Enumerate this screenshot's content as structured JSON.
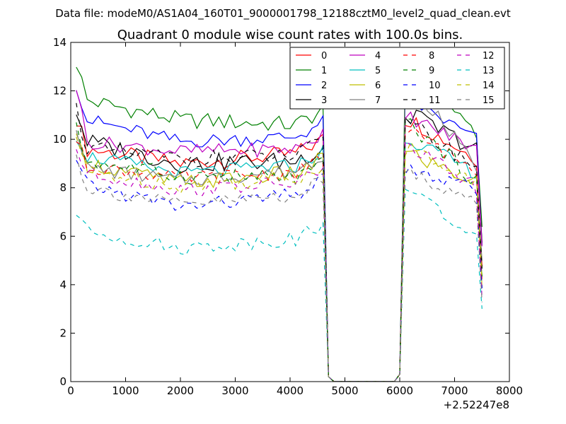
{
  "header": {
    "datafile": "Data file: modeM0/AS1A04_160T01_9000001798_12188cztM0_level2_quad_clean.evt",
    "title": "Quadrant 0 module wise count rates with 100.0s bins."
  },
  "chart_data": {
    "type": "line",
    "title": "Quadrant 0 module wise count rates with 100.0s bins.",
    "xlabel": "",
    "ylabel": "",
    "x_offset_label": "+2.52247e8",
    "xlim": [
      0,
      8000
    ],
    "ylim": [
      0,
      14
    ],
    "xticks": [
      0,
      1000,
      2000,
      3000,
      4000,
      5000,
      6000,
      7000,
      8000
    ],
    "yticks": [
      0,
      2,
      4,
      6,
      8,
      10,
      12,
      14
    ],
    "grid": false,
    "legend_position": "top-right",
    "legend_columns": 4,
    "x": [
      100,
      200,
      300,
      400,
      500,
      600,
      700,
      800,
      900,
      1000,
      1100,
      1200,
      1300,
      1400,
      1500,
      1600,
      1700,
      1800,
      1900,
      2000,
      2100,
      2200,
      2300,
      2400,
      2500,
      2600,
      2700,
      2800,
      2900,
      3000,
      3100,
      3200,
      3300,
      3400,
      3500,
      3600,
      3700,
      3800,
      3900,
      4000,
      4100,
      4200,
      4300,
      4400,
      4500,
      4600,
      4700,
      4800,
      4900,
      5000,
      5100,
      5200,
      5300,
      5400,
      5500,
      5600,
      5700,
      5800,
      5900,
      6000,
      6100,
      6200,
      6300,
      6400,
      6500,
      6600,
      6700,
      6800,
      6900,
      7000,
      7100,
      7200,
      7300,
      7400,
      7500
    ],
    "series": [
      {
        "name": "0",
        "color": "#ff0000",
        "dash": "solid"
      },
      {
        "name": "1",
        "color": "#008000",
        "dash": "solid"
      },
      {
        "name": "2",
        "color": "#0000ff",
        "dash": "solid"
      },
      {
        "name": "3",
        "color": "#000000",
        "dash": "solid"
      },
      {
        "name": "4",
        "color": "#bf00bf",
        "dash": "solid"
      },
      {
        "name": "5",
        "color": "#00bfbf",
        "dash": "solid"
      },
      {
        "name": "6",
        "color": "#bfbf00",
        "dash": "solid"
      },
      {
        "name": "7",
        "color": "#808080",
        "dash": "solid"
      },
      {
        "name": "8",
        "color": "#ff0000",
        "dash": "dashed"
      },
      {
        "name": "9",
        "color": "#008000",
        "dash": "dashed"
      },
      {
        "name": "10",
        "color": "#0000ff",
        "dash": "dashed"
      },
      {
        "name": "11",
        "color": "#000000",
        "dash": "dashed"
      },
      {
        "name": "12",
        "color": "#bf00bf",
        "dash": "dashed"
      },
      {
        "name": "13",
        "color": "#00bfbf",
        "dash": "dashed"
      },
      {
        "name": "14",
        "color": "#bfbf00",
        "dash": "dashed"
      },
      {
        "name": "15",
        "color": "#808080",
        "dash": "dashed"
      }
    ],
    "series_levels": [
      {
        "first": 10.9,
        "early": 9.6,
        "mid": 9.0,
        "late": 9.4,
        "b2first": 10.8,
        "b2late": 9.2,
        "amp": 0.35
      },
      {
        "first": 13.2,
        "early": 11.6,
        "mid": 10.8,
        "late": 10.6,
        "b2first": 12.8,
        "b2late": 10.4,
        "amp": 0.35
      },
      {
        "first": 12.3,
        "early": 10.8,
        "mid": 9.9,
        "late": 10.1,
        "b2first": 11.6,
        "b2late": 10.0,
        "amp": 0.3
      },
      {
        "first": 11.2,
        "early": 9.9,
        "mid": 9.0,
        "late": 9.1,
        "b2first": 11.0,
        "b2late": 9.6,
        "amp": 0.4
      },
      {
        "first": 12.2,
        "early": 9.9,
        "mid": 9.5,
        "late": 9.6,
        "b2first": 10.9,
        "b2late": 9.6,
        "amp": 0.3
      },
      {
        "first": 10.2,
        "early": 9.3,
        "mid": 8.6,
        "late": 8.9,
        "b2first": 10.0,
        "b2late": 8.6,
        "amp": 0.3
      },
      {
        "first": 9.9,
        "early": 9.0,
        "mid": 8.2,
        "late": 8.6,
        "b2first": 9.4,
        "b2late": 8.2,
        "amp": 0.35
      },
      {
        "first": 10.6,
        "early": 8.8,
        "mid": 8.3,
        "late": 8.7,
        "b2first": 12.3,
        "b2late": 8.9,
        "amp": 0.3
      },
      {
        "first": 10.0,
        "early": 8.9,
        "mid": 8.4,
        "late": 8.6,
        "b2first": 10.3,
        "b2late": 8.7,
        "amp": 0.3
      },
      {
        "first": 10.4,
        "early": 9.1,
        "mid": 8.5,
        "late": 8.4,
        "b2first": 10.6,
        "b2late": 8.3,
        "amp": 0.35
      },
      {
        "first": 9.0,
        "early": 8.1,
        "mid": 7.2,
        "late": 7.7,
        "b2first": 8.7,
        "b2late": 7.9,
        "amp": 0.3
      },
      {
        "first": 11.3,
        "early": 9.6,
        "mid": 9.2,
        "late": 9.3,
        "b2first": 10.6,
        "b2late": 8.9,
        "amp": 0.35
      },
      {
        "first": 9.6,
        "early": 8.6,
        "mid": 7.9,
        "late": 8.2,
        "b2first": 9.7,
        "b2late": 8.0,
        "amp": 0.3
      },
      {
        "first": 7.0,
        "early": 6.2,
        "mid": 5.5,
        "late": 5.9,
        "b2first": 8.0,
        "b2late": 5.8,
        "amp": 0.3
      },
      {
        "first": 10.1,
        "early": 8.7,
        "mid": 8.1,
        "late": 8.4,
        "b2first": 9.6,
        "b2late": 8.2,
        "amp": 0.35
      },
      {
        "first": 9.3,
        "early": 8.0,
        "mid": 7.3,
        "late": 7.7,
        "b2first": 8.6,
        "b2late": 7.4,
        "amp": 0.3
      }
    ]
  }
}
